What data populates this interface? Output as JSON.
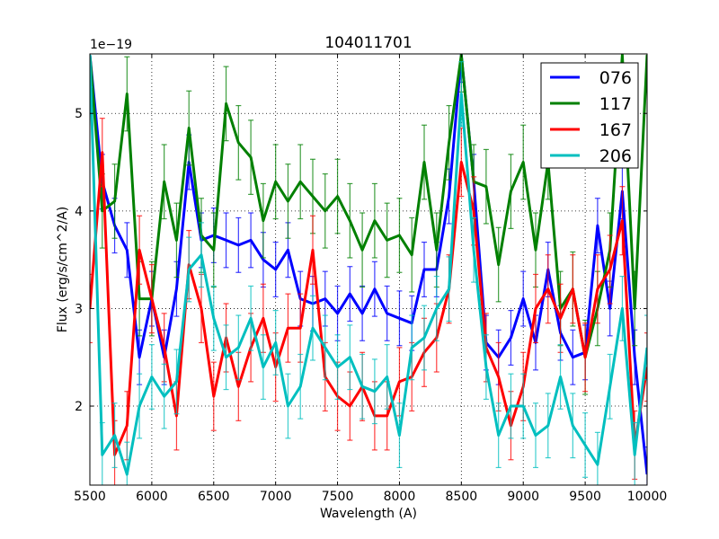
{
  "chart_data": {
    "type": "line",
    "title": "104011701",
    "xlabel": "Wavelength (A)",
    "ylabel": "Flux (erg/s/cm^2/A)",
    "y_offset_label": "1e−19",
    "xlim": [
      5500,
      10000
    ],
    "ylim": [
      1.19,
      5.61
    ],
    "xticks": [
      5500,
      6000,
      6500,
      7000,
      7500,
      8000,
      8500,
      9000,
      9500,
      10000
    ],
    "yticks": [
      2,
      3,
      4,
      5
    ],
    "grid": true,
    "legend_placement": "top-right",
    "x": [
      5500,
      5600,
      5700,
      5800,
      5900,
      6000,
      6100,
      6200,
      6300,
      6400,
      6500,
      6600,
      6700,
      6800,
      6900,
      7000,
      7100,
      7200,
      7300,
      7400,
      7500,
      7600,
      7700,
      7800,
      7900,
      8000,
      8100,
      8200,
      8300,
      8400,
      8500,
      8600,
      8700,
      8800,
      8900,
      9000,
      9100,
      9200,
      9300,
      9400,
      9500,
      9600,
      9700,
      9800,
      9900,
      10000
    ],
    "series": [
      {
        "name": "076",
        "color": "#0000ff",
        "error": 0.28,
        "values": [
          5.6,
          4.3,
          3.85,
          3.6,
          2.5,
          3.1,
          2.5,
          3.2,
          4.5,
          3.7,
          3.75,
          3.7,
          3.65,
          3.7,
          3.5,
          3.4,
          3.6,
          3.1,
          3.05,
          3.1,
          2.95,
          3.15,
          2.95,
          3.2,
          2.95,
          2.9,
          2.85,
          3.4,
          3.4,
          4.15,
          5.6,
          4.3,
          2.65,
          2.5,
          2.7,
          3.1,
          2.65,
          3.4,
          2.75,
          2.5,
          2.55,
          3.85,
          3.0,
          4.2,
          2.5,
          1.3
        ]
      },
      {
        "name": "117",
        "color": "#008000",
        "error": 0.38,
        "values": [
          5.6,
          4.0,
          4.1,
          5.2,
          3.1,
          3.1,
          4.3,
          3.7,
          4.85,
          3.75,
          3.6,
          5.1,
          4.7,
          4.55,
          3.9,
          4.3,
          4.1,
          4.3,
          4.15,
          4.0,
          4.15,
          3.9,
          3.6,
          3.9,
          3.7,
          3.75,
          3.55,
          4.5,
          3.6,
          4.7,
          5.6,
          4.3,
          4.25,
          3.45,
          4.2,
          4.5,
          3.6,
          4.5,
          3.0,
          3.2,
          2.5,
          3.0,
          3.6,
          5.6,
          3.0,
          5.6
        ]
      },
      {
        "name": "167",
        "color": "#ff0000",
        "error": 0.35,
        "values": [
          3.0,
          4.6,
          1.5,
          1.8,
          3.6,
          3.1,
          2.6,
          1.9,
          3.45,
          3.0,
          2.1,
          2.7,
          2.2,
          2.6,
          2.9,
          2.4,
          2.8,
          2.8,
          3.6,
          2.3,
          2.1,
          2.0,
          2.2,
          1.9,
          1.9,
          2.25,
          2.3,
          2.55,
          2.7,
          3.2,
          4.5,
          4.0,
          2.6,
          2.3,
          1.8,
          2.2,
          3.0,
          3.2,
          2.9,
          3.2,
          2.5,
          3.2,
          3.4,
          3.9,
          1.6,
          2.4
        ]
      },
      {
        "name": "206",
        "color": "#00bfbf",
        "error": 0.33,
        "values": [
          5.6,
          1.5,
          1.7,
          1.3,
          2.0,
          2.3,
          2.1,
          2.25,
          3.4,
          3.55,
          2.9,
          2.5,
          2.6,
          2.9,
          2.4,
          2.65,
          2.0,
          2.2,
          2.8,
          2.6,
          2.4,
          2.5,
          2.2,
          2.15,
          2.3,
          1.7,
          2.6,
          2.7,
          3.0,
          3.2,
          5.2,
          3.6,
          2.4,
          1.7,
          2.0,
          2.0,
          1.7,
          1.8,
          2.3,
          1.8,
          1.6,
          1.4,
          2.2,
          3.0,
          1.5,
          2.6
        ]
      }
    ]
  }
}
